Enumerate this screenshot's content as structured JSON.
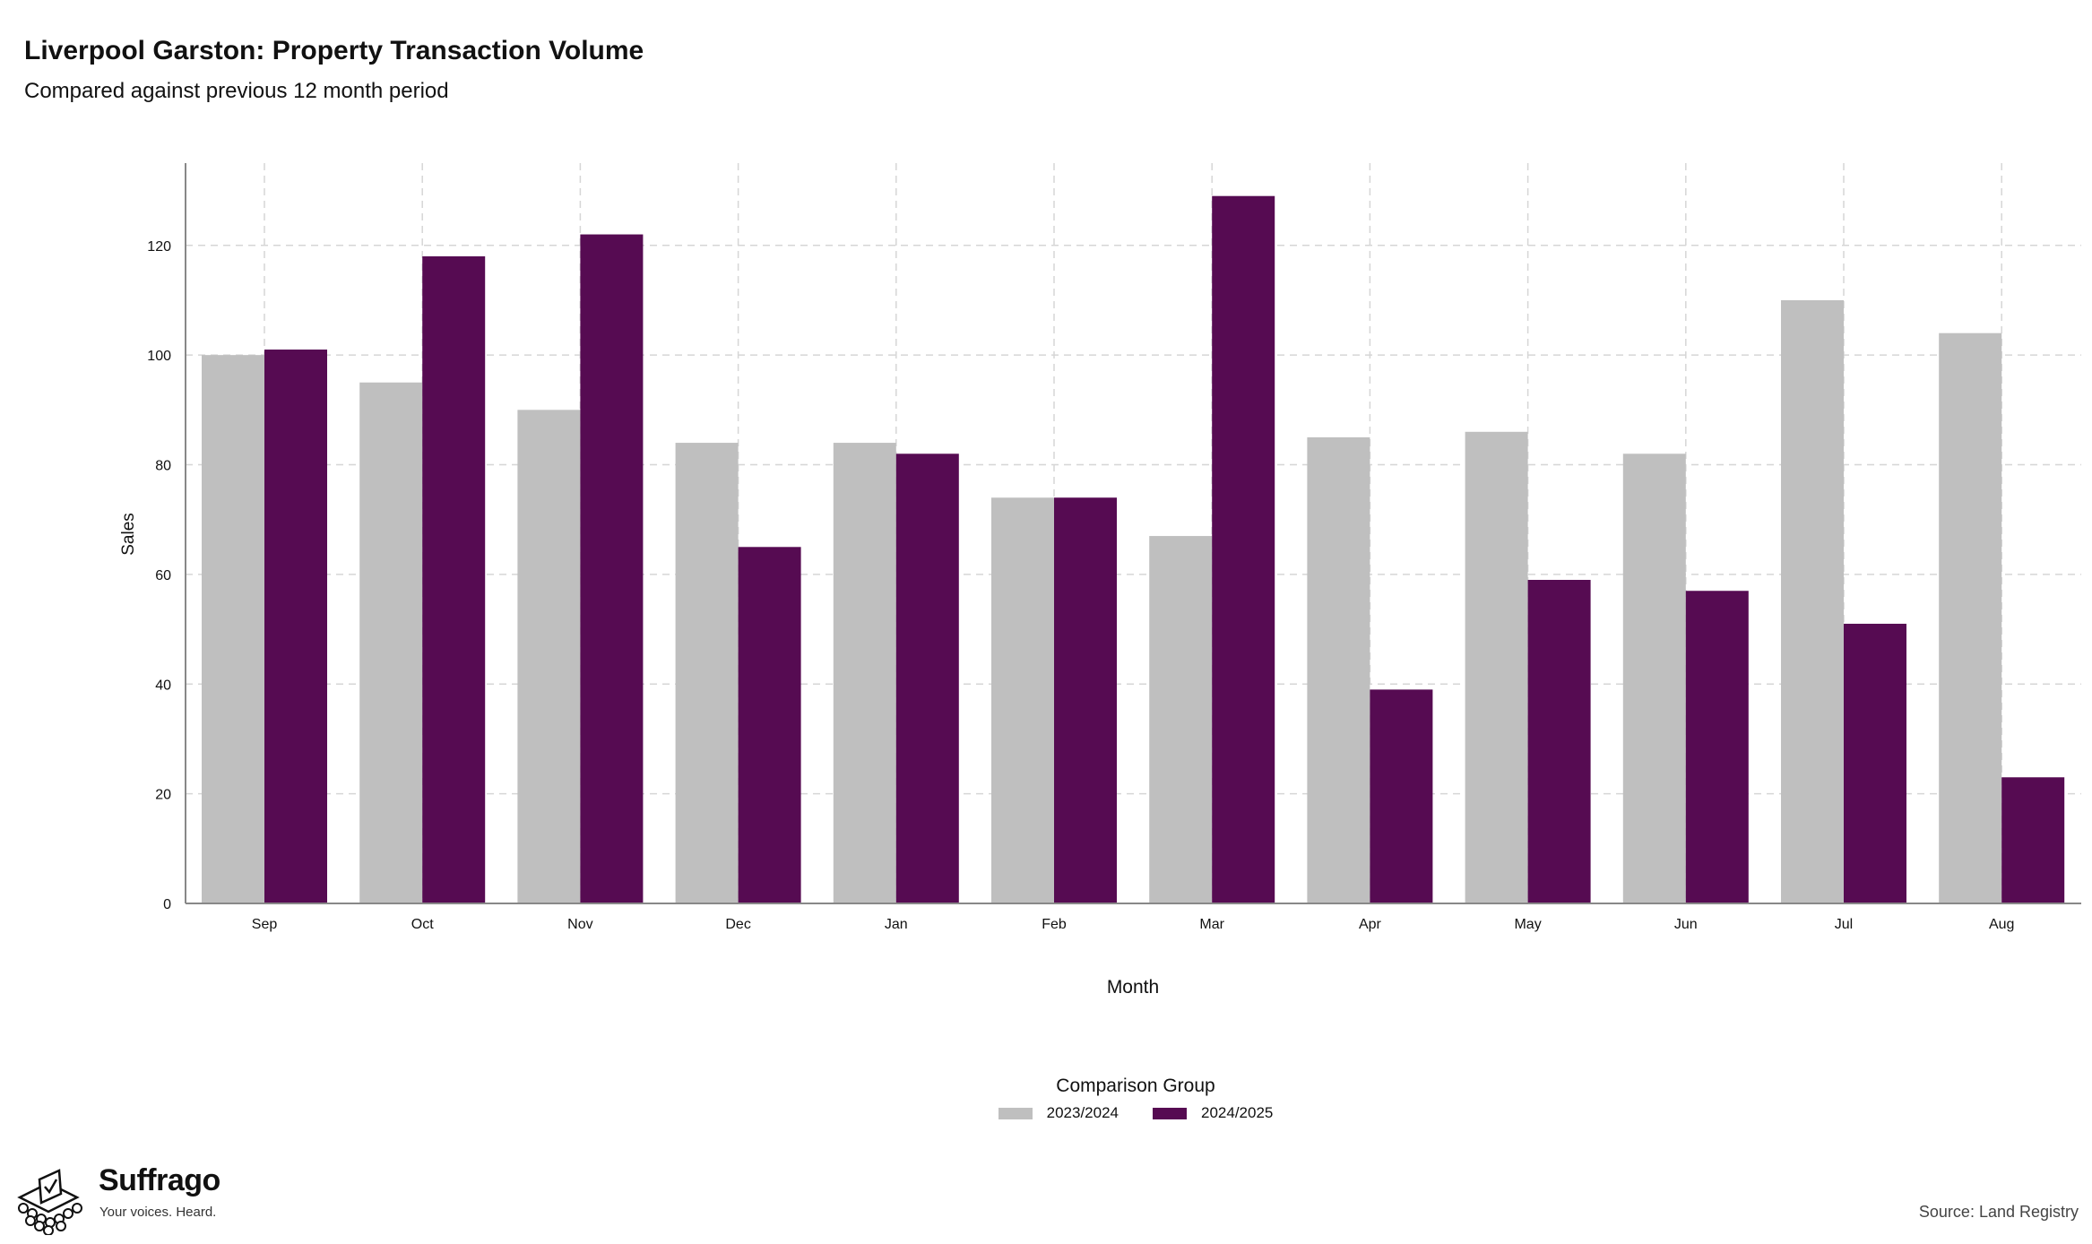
{
  "header": {
    "title": "Liverpool Garston: Property Transaction Volume",
    "subtitle": "Compared against previous 12 month period"
  },
  "chart_data": {
    "type": "bar",
    "categories": [
      "Sep",
      "Oct",
      "Nov",
      "Dec",
      "Jan",
      "Feb",
      "Mar",
      "Apr",
      "May",
      "Jun",
      "Jul",
      "Aug"
    ],
    "series": [
      {
        "name": "2023/2024",
        "color": "#bfbfbf",
        "values": [
          100,
          95,
          90,
          84,
          84,
          74,
          67,
          85,
          86,
          82,
          110,
          104
        ]
      },
      {
        "name": "2024/2025",
        "color": "#560b52",
        "values": [
          101,
          118,
          122,
          65,
          82,
          74,
          129,
          39,
          59,
          57,
          51,
          23
        ]
      }
    ],
    "xlabel": "Month",
    "ylabel": "Sales",
    "ylim": [
      0,
      135
    ],
    "yticks": [
      0,
      20,
      40,
      60,
      80,
      100,
      120
    ],
    "grid": true,
    "legend_title": "Comparison Group",
    "legend_position": "bottom"
  },
  "brand": {
    "name": "Suffrago",
    "tagline": "Your voices. Heard."
  },
  "source": "Source: Land Registry"
}
